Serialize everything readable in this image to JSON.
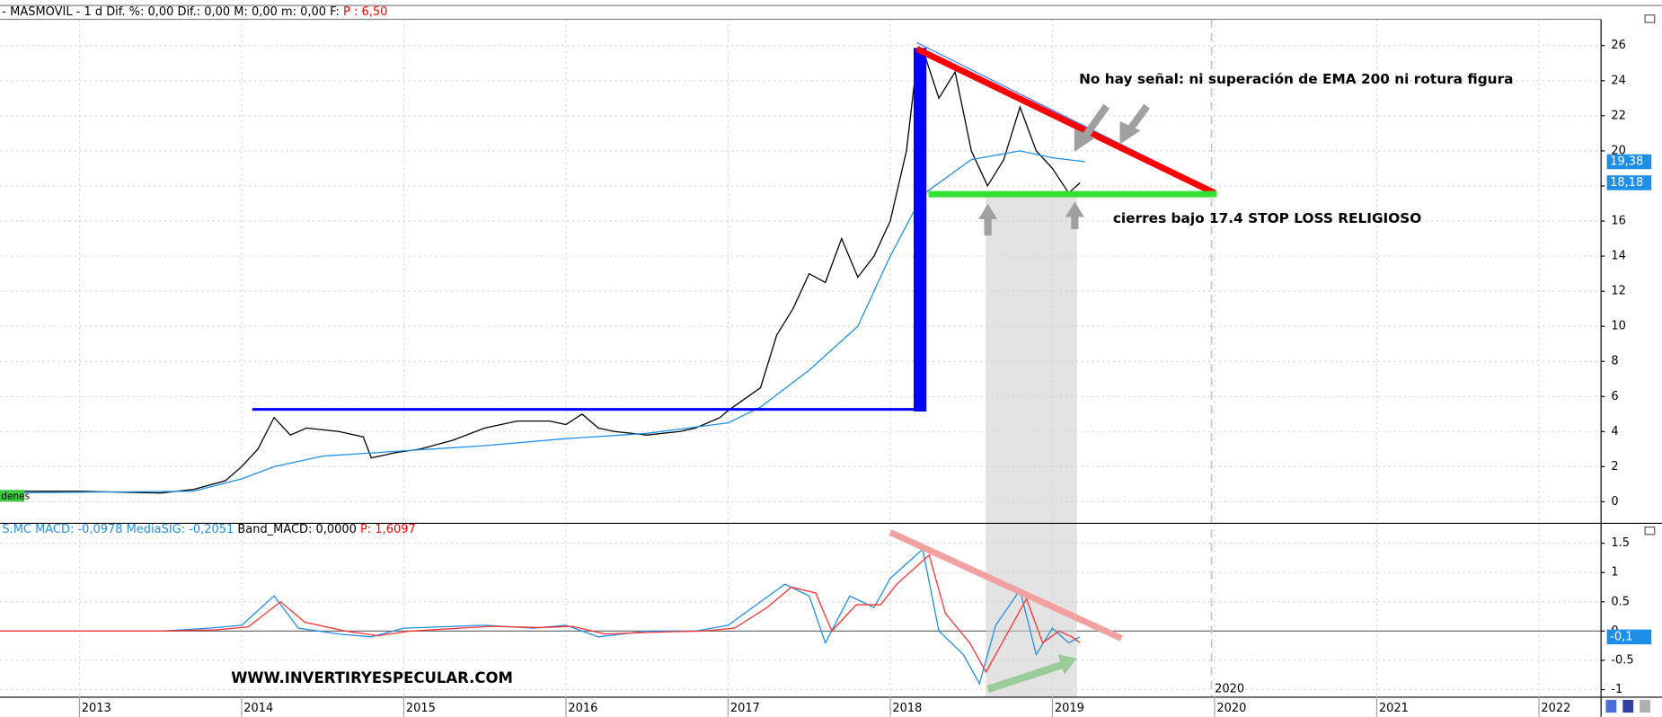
{
  "chart_data": [
    {
      "type": "line",
      "info": [
        {
          "text": "- MASMOVIL -  1 d Dif. %: 0,00 Dif.: 0,00 M: 0,00 m: 0,00 F:",
          "color": "#000000"
        },
        {
          "text": "P : 6,50",
          "color": "#ff0000"
        }
      ],
      "annotations": [
        "No hay señal: ni superación de EMA 200 ni rotura figura",
        "cierres bajo  17.4 STOP LOSS RELIGIOSO"
      ],
      "side_label": "denes",
      "xlim": [
        2012.51,
        2022.38
      ],
      "ylim": [
        -1.2,
        27.5
      ],
      "yticks": [
        0,
        2,
        4,
        6,
        8,
        10,
        12,
        14,
        16,
        18,
        20,
        22,
        24,
        26
      ],
      "grid": true,
      "series": [
        {
          "name": "MASMOVIL",
          "color": "#000000",
          "x": [
            2012.5,
            2013.0,
            2013.5,
            2013.7,
            2013.9,
            2014.0,
            2014.1,
            2014.2,
            2014.3,
            2014.4,
            2014.6,
            2014.75,
            2014.8,
            2014.95,
            2015.1,
            2015.3,
            2015.5,
            2015.7,
            2015.9,
            2016.0,
            2016.1,
            2016.2,
            2016.3,
            2016.5,
            2016.7,
            2016.8,
            2016.95,
            2017.0,
            2017.2,
            2017.3,
            2017.4,
            2017.5,
            2017.6,
            2017.7,
            2017.8,
            2017.9,
            2018.0,
            2018.1,
            2018.15,
            2018.2,
            2018.3,
            2018.4,
            2018.5,
            2018.6,
            2018.7,
            2018.8,
            2018.9,
            2019.0,
            2019.1,
            2019.17
          ],
          "values": [
            0.6,
            0.6,
            0.5,
            0.7,
            1.2,
            2.0,
            3.0,
            4.8,
            3.8,
            4.2,
            4.0,
            3.7,
            2.5,
            2.8,
            3.0,
            3.5,
            4.2,
            4.6,
            4.6,
            4.4,
            5.0,
            4.2,
            4.0,
            3.8,
            4.0,
            4.2,
            4.8,
            5.2,
            6.5,
            9.5,
            11,
            13,
            12.5,
            15,
            12.8,
            14,
            16,
            20,
            24,
            25.8,
            23,
            24.5,
            20,
            18,
            19.5,
            22.5,
            20,
            19,
            17.6,
            18.18
          ],
          "last_value": {
            "value": 18.18,
            "label": "18,18"
          }
        },
        {
          "name": "EMA 200",
          "color": "#1e8fe8",
          "x": [
            2012.5,
            2013.7,
            2014.0,
            2014.2,
            2014.5,
            2015.0,
            2015.5,
            2016.0,
            2016.5,
            2017.0,
            2017.2,
            2017.5,
            2017.8,
            2018.0,
            2018.2,
            2018.5,
            2018.8,
            2019.0,
            2019.2
          ],
          "values": [
            0.5,
            0.6,
            1.3,
            2.0,
            2.6,
            2.9,
            3.2,
            3.6,
            3.9,
            4.5,
            5.4,
            7.5,
            10,
            14,
            17.5,
            19.5,
            20,
            19.6,
            19.38
          ],
          "last_value": {
            "value": 19.38,
            "label": "19,38"
          }
        }
      ]
    },
    {
      "type": "line",
      "info": [
        {
          "text": "S.MC MACD: -0,0978",
          "color": "#1e8fe8"
        },
        {
          "text": "MediaSIG: -0,2051",
          "color": "#1e8fe8"
        },
        {
          "text": "Band_MACD: 0,0000",
          "color": "#000000"
        },
        {
          "text": "P: 1,6097",
          "color": "#ff0000"
        }
      ],
      "annotations": [
        "WWW.INVERTIRYESPECULAR.COM",
        "2020"
      ],
      "xlim": [
        2012.51,
        2022.38
      ],
      "xticks": [
        2013,
        2014,
        2015,
        2016,
        2017,
        2018,
        2019,
        2020,
        2021,
        2022
      ],
      "ylim": [
        -1.12,
        1.83
      ],
      "yticks": [
        -1,
        -0.5,
        0,
        0.5,
        1,
        1.5
      ],
      "grid": true,
      "series": [
        {
          "name": "MACD",
          "color": "#1e8fe8",
          "x": [
            2012.5,
            2013.5,
            2013.8,
            2014.0,
            2014.2,
            2014.35,
            2014.6,
            2014.8,
            2015.0,
            2015.5,
            2015.8,
            2016.0,
            2016.2,
            2016.5,
            2016.8,
            2017.0,
            2017.2,
            2017.35,
            2017.5,
            2017.6,
            2017.75,
            2017.9,
            2018.0,
            2018.2,
            2018.3,
            2018.45,
            2018.55,
            2018.65,
            2018.8,
            2018.9,
            2019.0,
            2019.1,
            2019.17
          ],
          "values": [
            0,
            0,
            0.05,
            0.1,
            0.6,
            0.05,
            -0.05,
            -0.1,
            0.05,
            0.1,
            0.05,
            0.1,
            -0.1,
            0,
            0,
            0.1,
            0.5,
            0.8,
            0.6,
            -0.2,
            0.6,
            0.4,
            0.9,
            1.4,
            0,
            -0.4,
            -0.9,
            0.1,
            0.7,
            -0.4,
            0.05,
            -0.2,
            -0.1
          ],
          "last_value": {
            "value": -0.1,
            "label": "-0,1"
          }
        },
        {
          "name": "MediaSIG",
          "color": "#ff3030",
          "x": [
            2012.5,
            2013.5,
            2013.84,
            2014.04,
            2014.24,
            2014.39,
            2014.64,
            2014.84,
            2015.04,
            2015.54,
            2015.84,
            2016.04,
            2016.24,
            2016.54,
            2016.84,
            2017.04,
            2017.24,
            2017.39,
            2017.54,
            2017.64,
            2017.79,
            2017.94,
            2018.04,
            2018.24,
            2018.34,
            2018.49,
            2018.59,
            2018.69,
            2018.84,
            2018.94,
            2019.04,
            2019.12,
            2019.17
          ],
          "values": [
            0,
            0,
            0.02,
            0.07,
            0.5,
            0.15,
            0,
            -0.08,
            0,
            0.08,
            0.06,
            0.08,
            -0.05,
            -0.02,
            0,
            0.05,
            0.4,
            0.75,
            0.65,
            0,
            0.45,
            0.45,
            0.8,
            1.3,
            0.3,
            -0.2,
            -0.7,
            -0.2,
            0.55,
            -0.2,
            0,
            -0.1,
            -0.2
          ]
        }
      ]
    }
  ]
}
